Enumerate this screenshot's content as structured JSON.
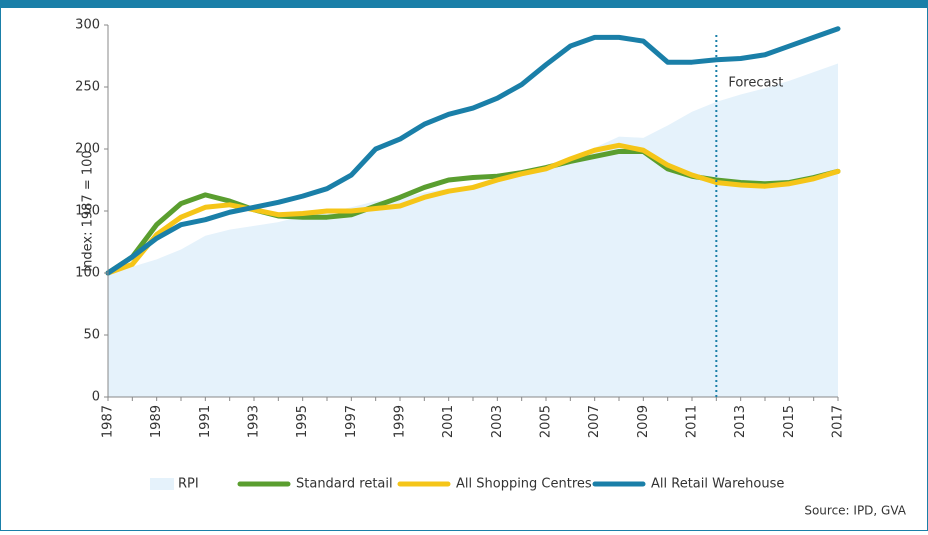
{
  "chart_data": {
    "type": "line",
    "ylabel": "Index: 1987 = 100",
    "x": [
      1987,
      1988,
      1989,
      1990,
      1991,
      1992,
      1993,
      1994,
      1995,
      1996,
      1997,
      1998,
      1999,
      2000,
      2001,
      2002,
      2003,
      2004,
      2005,
      2006,
      2007,
      2008,
      2009,
      2010,
      2011,
      2012,
      2013,
      2014,
      2015,
      2016,
      2017
    ],
    "xlim": [
      1987,
      2017
    ],
    "xticks": [
      1987,
      1989,
      1991,
      1993,
      1995,
      1997,
      1999,
      2001,
      2003,
      2005,
      2007,
      2009,
      2011,
      2013,
      2015,
      2017
    ],
    "ylim": [
      0,
      300
    ],
    "yticks": [
      0,
      50,
      100,
      150,
      200,
      250,
      300
    ],
    "series": [
      {
        "name": "RPI",
        "color": "#e5f2fb",
        "style": "area",
        "values": [
          100,
          105,
          111,
          119,
          130,
          135,
          138,
          141,
          146,
          149,
          153,
          158,
          160,
          165,
          168,
          171,
          177,
          182,
          187,
          193,
          201,
          210,
          209,
          219,
          230,
          238,
          244,
          249,
          255,
          262,
          269
        ]
      },
      {
        "name": "Standard retail",
        "color": "#5a9e2f",
        "style": "line",
        "values": [
          100,
          113,
          139,
          156,
          163,
          158,
          151,
          146,
          145,
          145,
          147,
          154,
          161,
          169,
          175,
          177,
          178,
          181,
          185,
          190,
          194,
          198,
          198,
          184,
          178,
          175,
          173,
          172,
          173,
          177,
          182
        ]
      },
      {
        "name": "All Shopping Centres",
        "color": "#f5c518",
        "style": "line",
        "values": [
          100,
          107,
          131,
          145,
          153,
          155,
          151,
          147,
          148,
          150,
          150,
          152,
          154,
          161,
          166,
          169,
          175,
          180,
          184,
          192,
          199,
          203,
          199,
          187,
          179,
          173,
          171,
          170,
          172,
          176,
          182
        ]
      },
      {
        "name": "All Retail Warehouse",
        "color": "#1a7fa8",
        "style": "line",
        "values": [
          100,
          113,
          128,
          139,
          143,
          149,
          153,
          157,
          162,
          168,
          179,
          200,
          208,
          220,
          228,
          233,
          241,
          252,
          268,
          283,
          290,
          290,
          287,
          270,
          270,
          272,
          273,
          276,
          283,
          290,
          297
        ]
      }
    ],
    "annotation": {
      "text": "Forecast",
      "x": 2012
    },
    "source": "Source: IPD, GVA"
  }
}
